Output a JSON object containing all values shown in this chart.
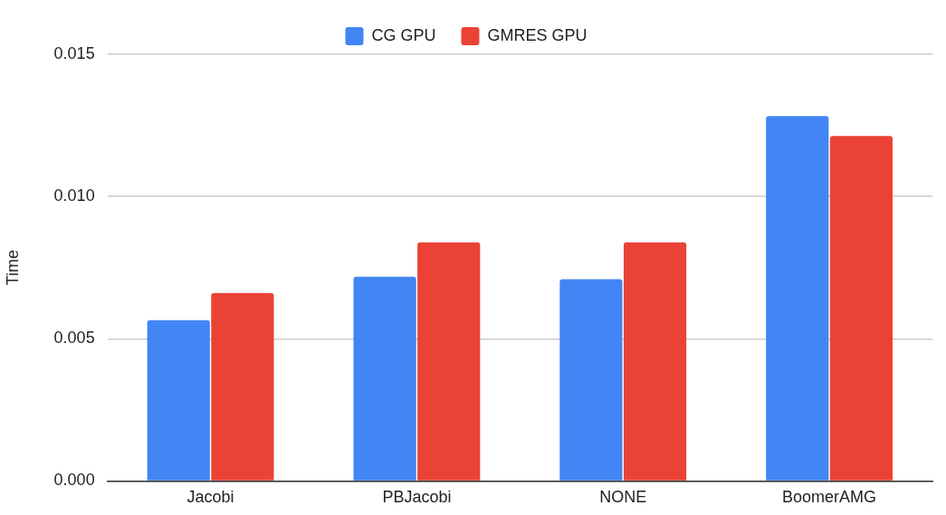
{
  "chart_data": {
    "type": "bar",
    "ylabel": "Time",
    "categories": [
      "Jacobi",
      "PBJacobi",
      "NONE",
      "BoomerAMG"
    ],
    "series": [
      {
        "name": "CG GPU",
        "color": "#4285f4",
        "values": [
          0.00565,
          0.00718,
          0.00709,
          0.01283
        ]
      },
      {
        "name": "GMRES GPU",
        "color": "#ea4335",
        "values": [
          0.00661,
          0.00839,
          0.00839,
          0.01213
        ]
      }
    ],
    "ylim": [
      0,
      0.015
    ],
    "yticks": [
      {
        "value": 0,
        "label": "0.000"
      },
      {
        "value": 0.005,
        "label": "0.005"
      },
      {
        "value": 0.01,
        "label": "0.010"
      },
      0.015
    ],
    "grid": "y",
    "legend": "top"
  }
}
